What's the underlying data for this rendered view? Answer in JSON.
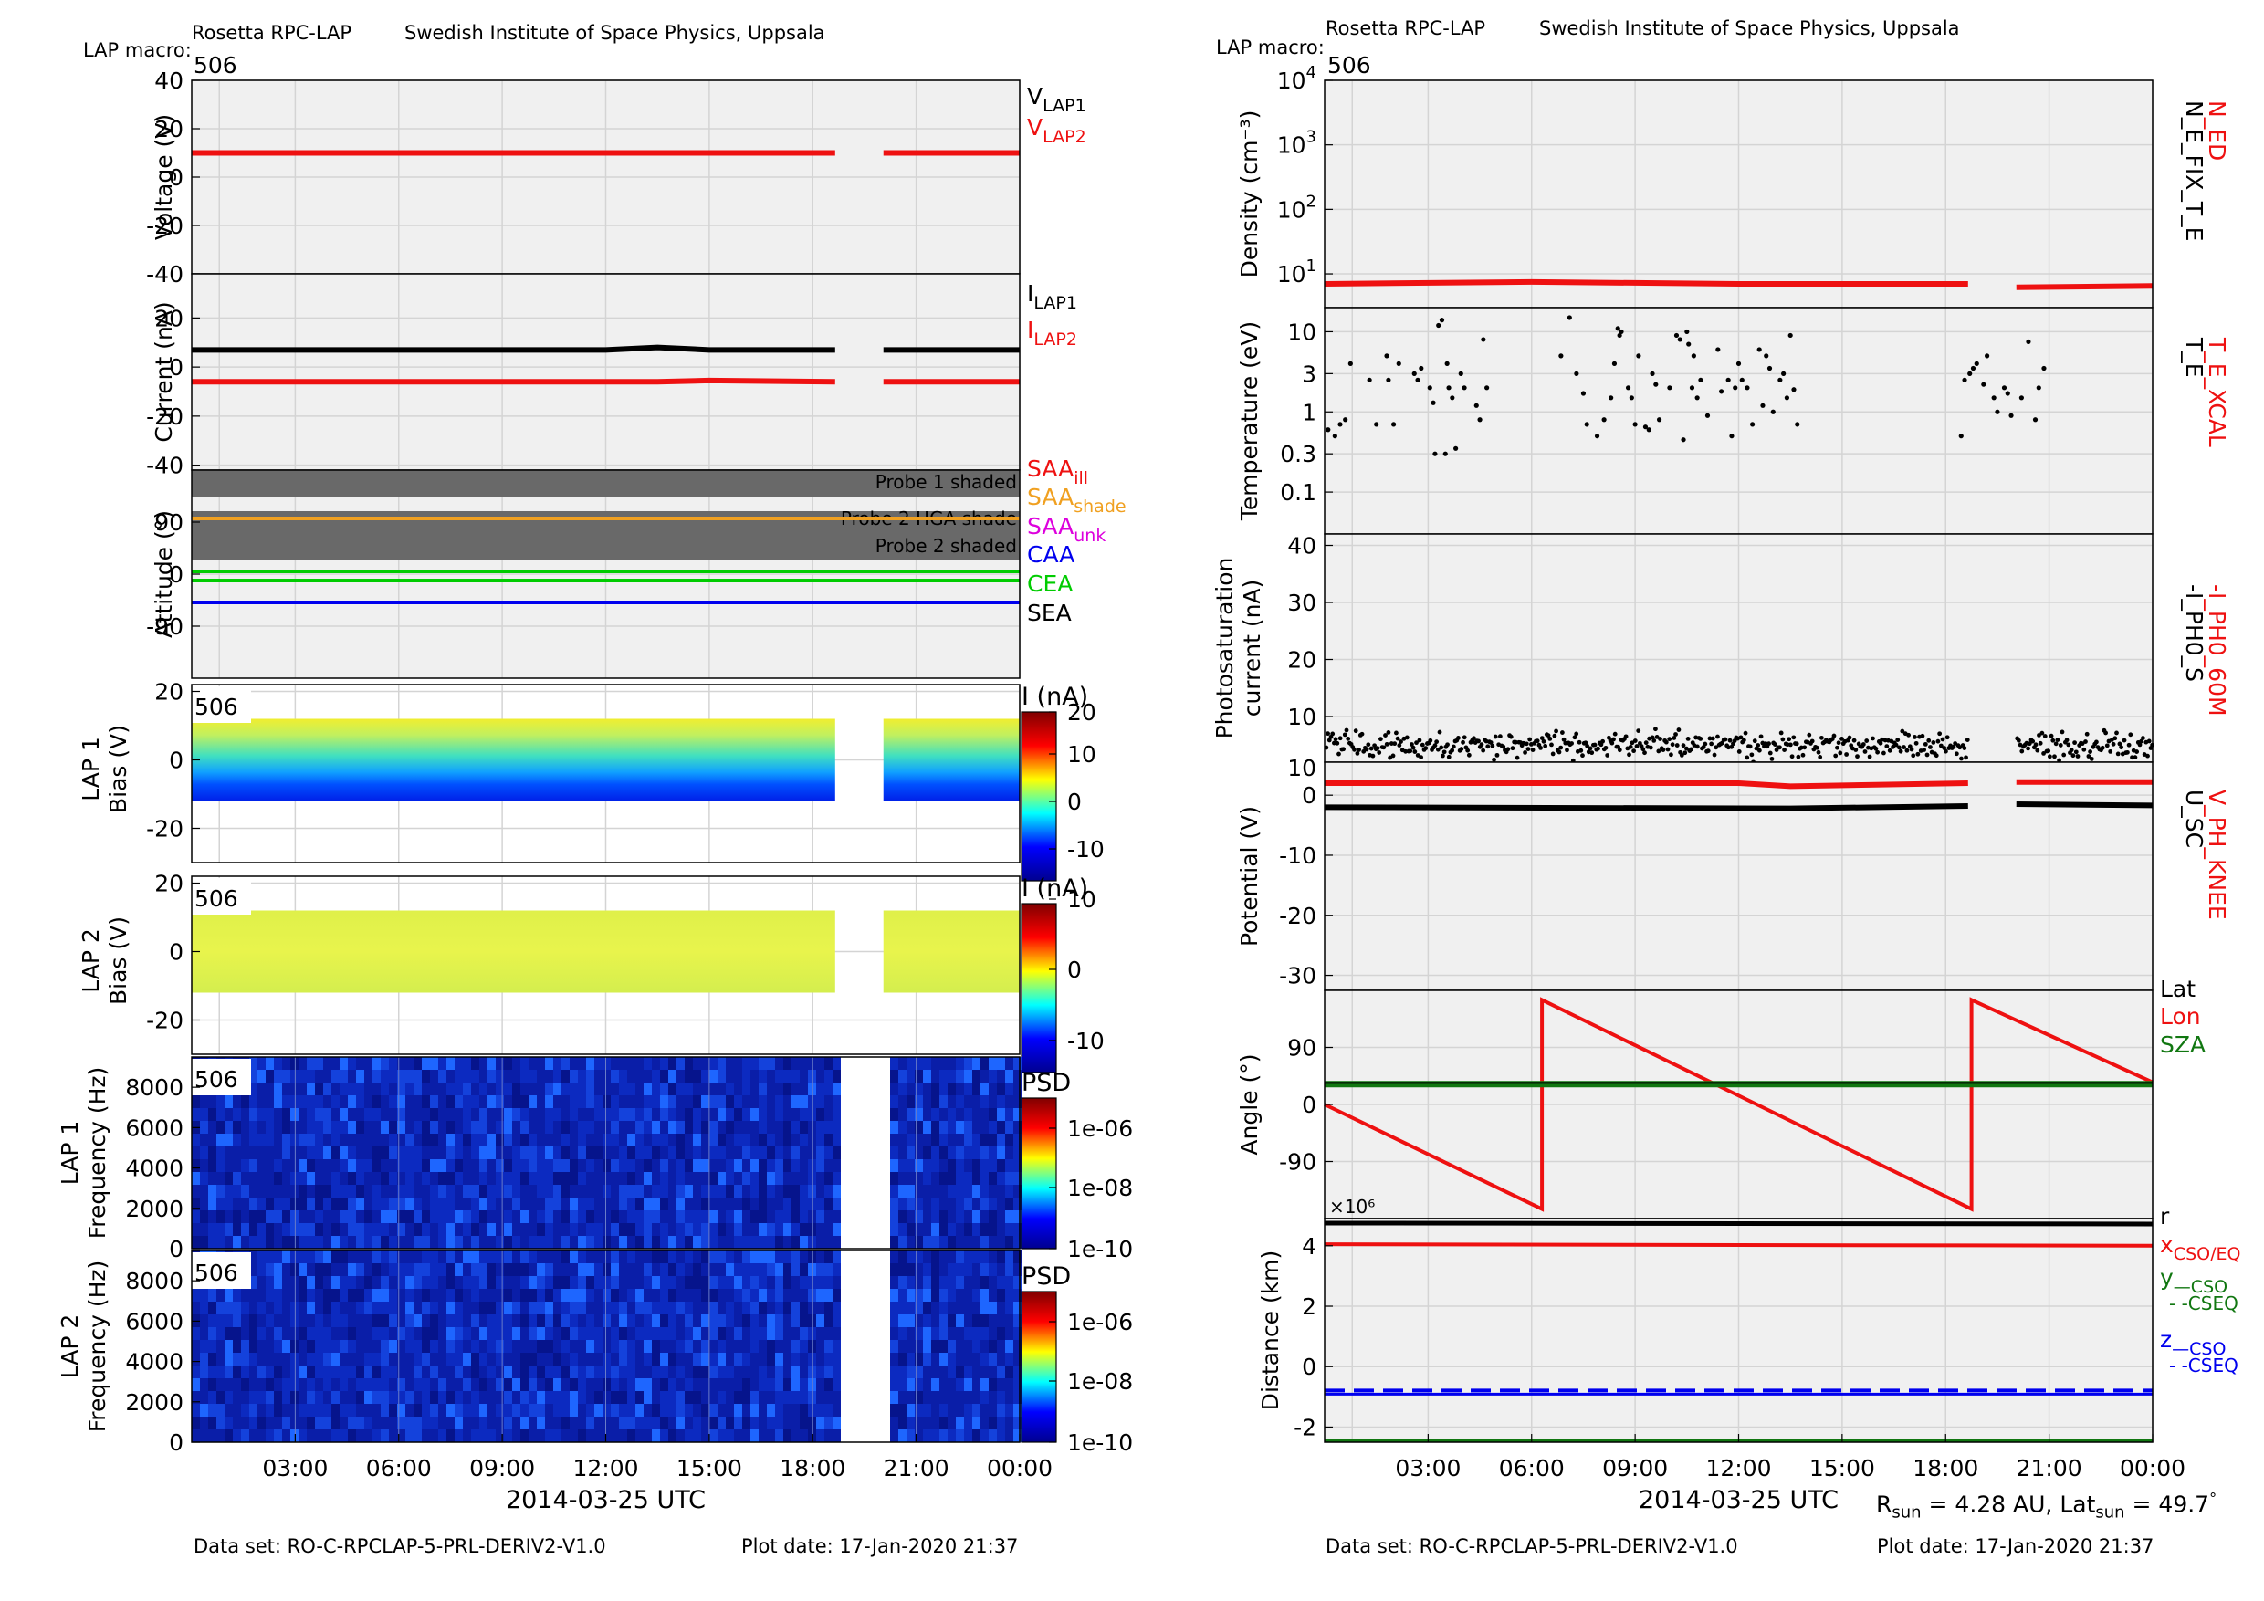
{
  "header": {
    "left": {
      "title": "Rosetta RPC-LAP",
      "institute": "Swedish Institute of Space Physics, Uppsala",
      "macro_label": "LAP macro:",
      "macro_value": "506"
    },
    "right": {
      "title": "Rosetta RPC-LAP",
      "institute": "Swedish Institute of Space Physics, Uppsala",
      "macro_label": "LAP macro:",
      "macro_value": "506"
    }
  },
  "footer": {
    "left": {
      "dataset": "Data set: RO-C-RPCLAP-5-PRL-DERIV2-V1.0",
      "plotdate": "Plot date: 17-Jan-2020 21:37"
    },
    "right": {
      "dataset": "Data set: RO-C-RPCLAP-5-PRL-DERIV2-V1.0",
      "plotdate": "Plot date: 17-Jan-2020 21:37"
    }
  },
  "colors": {
    "grid": "#d4d4d4",
    "panel_bg": "#f0f0f0",
    "red": "#ee1111",
    "black": "#000000",
    "green": "#00cc00",
    "dark_green": "#117711",
    "blue": "#0000ee",
    "orange": "#f0a020",
    "magenta": "#dd00dd",
    "shade": "#696969"
  },
  "chart_data": [
    {
      "type": "line",
      "id": "voltage",
      "ylabel": "Voltage (V)",
      "ylim": [
        -40,
        40
      ],
      "yticks": [
        "40",
        "20",
        "0",
        "-20",
        "-40"
      ],
      "legend": [
        {
          "label": "V",
          "sub": "LAP1",
          "color": "#000000"
        },
        {
          "label": "V",
          "sub": "LAP2",
          "color": "#ee1111"
        }
      ],
      "series": [
        {
          "name": "VLAP2",
          "color": "#ee1111",
          "x_hours": [
            0,
            18.65,
            20.05,
            24
          ],
          "y": [
            10,
            10,
            10,
            10
          ],
          "gap_hours": [
            18.65,
            20.05
          ]
        }
      ]
    },
    {
      "type": "line",
      "id": "current",
      "ylabel": "Current (nA)",
      "ylim": [
        -40,
        40
      ],
      "yticks": [
        "20",
        "0",
        "-20",
        "-40"
      ],
      "legend": [
        {
          "label": "I",
          "sub": "LAP1",
          "color": "#000000"
        },
        {
          "label": "I",
          "sub": "LAP2",
          "color": "#ee1111"
        }
      ],
      "series": [
        {
          "name": "ILAP1",
          "color": "#000000",
          "x_hours": [
            0,
            6,
            12,
            13.5,
            15,
            18.65,
            20.05,
            24
          ],
          "y": [
            7,
            7,
            7,
            8,
            7,
            7,
            7,
            7
          ]
        },
        {
          "name": "ILAP2",
          "color": "#ee1111",
          "x_hours": [
            0,
            13.5,
            15,
            18.65,
            20.05,
            24
          ],
          "y": [
            -6,
            -6,
            -5.5,
            -6,
            -6,
            -6
          ]
        }
      ]
    },
    {
      "type": "line",
      "id": "attitude",
      "ylabel": "Attitude (°)",
      "ylim": [
        -180,
        180
      ],
      "yticks": [
        "90",
        "0",
        "-90"
      ],
      "shades": [
        {
          "label": "Probe 1 shaded",
          "range": [
            140,
            180
          ]
        },
        {
          "label": "Probe 2 HGA shade",
          "range": [
            85,
            110
          ]
        },
        {
          "label": "Probe 2 shaded",
          "range": [
            25,
            85
          ]
        }
      ],
      "legend": [
        {
          "label": "SAA",
          "sub": "ill",
          "color": "#ee1111"
        },
        {
          "label": "SAA",
          "sub": "shade",
          "color": "#f0a020"
        },
        {
          "label": "SAA",
          "sub": "unk",
          "color": "#dd00dd"
        },
        {
          "label": "CAA",
          "sub": "",
          "color": "#0000ee"
        },
        {
          "label": "CEA",
          "sub": "",
          "color": "#00cc00"
        },
        {
          "label": "SEA",
          "sub": "",
          "color": "#000000"
        }
      ],
      "series": [
        {
          "name": "SAA",
          "color": "#f0a020",
          "y": 90
        },
        {
          "name": "CAA",
          "color": "#0000ee",
          "y": -60
        },
        {
          "name": "CEA",
          "color": "#00cc00",
          "y": [
            -4,
            2
          ]
        }
      ]
    },
    {
      "type": "heatmap",
      "id": "lap1bias",
      "ylabel": [
        "LAP 1",
        "Bias (V)"
      ],
      "ylim": [
        -30,
        22
      ],
      "yticks": [
        "20",
        "0",
        "-20"
      ],
      "macro": "506",
      "colorbar": {
        "title": "I (nA)",
        "ticks": [
          "20",
          "10",
          "0",
          "-10"
        ],
        "range": [
          -15,
          20
        ]
      },
      "bias_range": [
        -12,
        12
      ]
    },
    {
      "type": "heatmap",
      "id": "lap2bias",
      "ylabel": [
        "LAP 2",
        "Bias (V)"
      ],
      "ylim": [
        -30,
        22
      ],
      "yticks": [
        "20",
        "0",
        "-20"
      ],
      "macro": "506",
      "colorbar": {
        "title": "I (nA)",
        "ticks": [
          "10",
          "0",
          "-10"
        ],
        "range": [
          -12,
          10
        ]
      },
      "bias_range": [
        -12,
        12
      ]
    },
    {
      "type": "heatmap",
      "id": "lap1psd",
      "ylabel": [
        "LAP 1",
        "Frequency (Hz)"
      ],
      "ylim": [
        0,
        9500
      ],
      "yticks": [
        "8000",
        "6000",
        "4000",
        "2000",
        "0"
      ],
      "macro": "506",
      "colorbar": {
        "title": "PSD",
        "ticks": [
          "1e-06",
          "1e-08",
          "1e-10"
        ],
        "log": true
      }
    },
    {
      "type": "heatmap",
      "id": "lap2psd",
      "ylabel": [
        "LAP 2",
        "Frequency (Hz)"
      ],
      "ylim": [
        0,
        9500
      ],
      "yticks": [
        "8000",
        "6000",
        "4000",
        "2000",
        "0"
      ],
      "macro": "506",
      "colorbar": {
        "title": "PSD",
        "ticks": [
          "1e-06",
          "1e-08",
          "1e-10"
        ],
        "log": true
      }
    },
    {
      "type": "line",
      "id": "density",
      "ylabel": "Density (cm⁻³)",
      "scale": "log",
      "ylim": [
        3,
        10000
      ],
      "yticks": [
        "10⁴",
        "10³",
        "10²",
        "10¹"
      ],
      "right_labels": [
        {
          "text": "N_ED",
          "color": "#ee1111"
        },
        {
          "text": "N_E_FIX_T_E",
          "color": "#000000"
        }
      ],
      "series": [
        {
          "name": "N_ED",
          "color": "#ee1111",
          "x_hours": [
            0,
            6,
            12,
            18.65,
            20.05,
            24
          ],
          "y": [
            7,
            7.5,
            7,
            7,
            6.2,
            6.5
          ]
        }
      ]
    },
    {
      "type": "scatter",
      "id": "temperature",
      "ylabel": "Temperature (eV)",
      "scale": "log",
      "ylim": [
        0.03,
        20
      ],
      "yticks": [
        "10",
        "3",
        "1",
        "0.3",
        "0.1"
      ],
      "right_labels": [
        {
          "text": "T_E_XCAL",
          "color": "#ee1111"
        },
        {
          "text": "T_E",
          "color": "#000000"
        }
      ],
      "series": [
        {
          "name": "T_E",
          "color": "#000000",
          "points": [
            [
              0.1,
              0.6
            ],
            [
              0.3,
              0.5
            ],
            [
              0.45,
              0.7
            ],
            [
              0.6,
              0.8
            ],
            [
              0.75,
              4
            ],
            [
              1.3,
              2.5
            ],
            [
              1.5,
              0.7
            ],
            [
              1.8,
              5
            ],
            [
              1.85,
              2.5
            ],
            [
              2,
              0.7
            ],
            [
              2.15,
              4
            ],
            [
              2.6,
              3
            ],
            [
              2.7,
              2.5
            ],
            [
              2.8,
              3.5
            ],
            [
              3.05,
              2
            ],
            [
              3.15,
              1.3
            ],
            [
              3.2,
              0.3
            ],
            [
              3.3,
              12
            ],
            [
              3.4,
              14
            ],
            [
              3.5,
              0.3
            ],
            [
              3.55,
              4
            ],
            [
              3.6,
              2
            ],
            [
              3.7,
              1.5
            ],
            [
              3.8,
              0.35
            ],
            [
              3.95,
              3
            ],
            [
              4.05,
              2
            ],
            [
              4.4,
              1.2
            ],
            [
              4.5,
              0.8
            ],
            [
              4.6,
              8
            ],
            [
              4.7,
              2
            ],
            [
              6.85,
              5
            ],
            [
              7.1,
              15
            ],
            [
              7.3,
              3
            ],
            [
              7.5,
              1.7
            ],
            [
              7.6,
              0.7
            ],
            [
              7.9,
              0.5
            ],
            [
              8.1,
              0.8
            ],
            [
              8.3,
              1.5
            ],
            [
              8.4,
              4
            ],
            [
              8.5,
              11
            ],
            [
              8.55,
              9
            ],
            [
              8.6,
              10
            ],
            [
              8.8,
              2
            ],
            [
              8.9,
              1.5
            ],
            [
              9,
              0.7
            ],
            [
              9.1,
              5
            ],
            [
              9.3,
              0.65
            ],
            [
              9.4,
              0.6
            ],
            [
              9.5,
              3
            ],
            [
              9.6,
              2.2
            ],
            [
              9.7,
              0.8
            ],
            [
              10,
              2
            ],
            [
              10.2,
              9
            ],
            [
              10.3,
              8
            ],
            [
              10.4,
              0.45
            ],
            [
              10.5,
              10
            ],
            [
              10.55,
              7
            ],
            [
              10.65,
              2
            ],
            [
              10.7,
              5
            ],
            [
              10.8,
              1.5
            ],
            [
              10.9,
              2.5
            ],
            [
              11.1,
              0.9
            ],
            [
              11.4,
              6
            ],
            [
              11.5,
              1.8
            ],
            [
              11.7,
              2.5
            ],
            [
              11.8,
              0.5
            ],
            [
              11.9,
              2
            ],
            [
              12,
              4
            ],
            [
              12.1,
              2.5
            ],
            [
              12.25,
              2
            ],
            [
              12.4,
              0.7
            ],
            [
              12.6,
              6
            ],
            [
              12.7,
              1.2
            ],
            [
              12.8,
              5
            ],
            [
              12.9,
              3.5
            ],
            [
              13,
              1
            ],
            [
              13.2,
              2.5
            ],
            [
              13.3,
              3
            ],
            [
              13.4,
              1.5
            ],
            [
              13.5,
              9
            ],
            [
              13.6,
              1.9
            ],
            [
              13.7,
              0.7
            ],
            [
              18.45,
              0.5
            ],
            [
              18.55,
              2.5
            ],
            [
              18.7,
              3
            ],
            [
              18.8,
              3.5
            ],
            [
              18.9,
              4
            ],
            [
              19.1,
              2.2
            ],
            [
              19.2,
              5
            ],
            [
              19.4,
              1.5
            ],
            [
              19.5,
              1
            ],
            [
              19.7,
              2
            ],
            [
              19.8,
              1.7
            ],
            [
              19.9,
              0.9
            ],
            [
              20.2,
              1.5
            ],
            [
              20.4,
              7.5
            ],
            [
              20.6,
              0.8
            ],
            [
              20.7,
              2
            ],
            [
              20.85,
              3.5
            ]
          ]
        }
      ]
    },
    {
      "type": "scatter",
      "id": "photosaturation",
      "ylabel": [
        "Photosaturation",
        "current (nA)"
      ],
      "ylim": [
        0,
        40
      ],
      "yticks": [
        "40",
        "30",
        "20",
        "10"
      ],
      "right_labels": [
        {
          "text": "-I_PH0_60M",
          "color": "#ee1111"
        },
        {
          "text": "-I_PH0_S",
          "color": "#000000"
        }
      ],
      "series": [
        {
          "name": "-I_PH0_S",
          "color": "#000000",
          "mean": 5,
          "spread": 1.5,
          "gap_hours": [
            18.65,
            20.05
          ]
        }
      ]
    },
    {
      "type": "line",
      "id": "potential",
      "ylabel": "Potential (V)",
      "ylim": [
        -32,
        5
      ],
      "yticks": [
        "0",
        "-10",
        "-20",
        "-30"
      ],
      "right_labels": [
        {
          "text": "V_PH_KNEE",
          "color": "#ee1111"
        },
        {
          "text": "U_SC",
          "color": "#000000"
        }
      ],
      "series": [
        {
          "name": "V_PH_KNEE",
          "color": "#ee1111",
          "x_hours": [
            0,
            12,
            13.5,
            18.65,
            20.05,
            24
          ],
          "y": [
            2,
            2,
            1.5,
            2,
            2.2,
            2.2
          ]
        },
        {
          "name": "U_SC",
          "color": "#000000",
          "x_hours": [
            0,
            13.5,
            18.65,
            20.05,
            24
          ],
          "y": [
            -2,
            -2.2,
            -1.8,
            -1.5,
            -1.7
          ]
        }
      ]
    },
    {
      "type": "line",
      "id": "angle",
      "ylabel": "Angle (°)",
      "ylim": [
        -180,
        180
      ],
      "yticks": [
        "90",
        "0",
        "-90"
      ],
      "legend": [
        {
          "label": "Lat",
          "sub": "",
          "color": "#000000"
        },
        {
          "label": "Lon",
          "sub": "",
          "color": "#ee1111"
        },
        {
          "label": "SZA",
          "sub": "",
          "color": "#117711"
        }
      ],
      "series": [
        {
          "name": "Lon",
          "color": "#ee1111",
          "x_hours": [
            0,
            6.3,
            6.3,
            18.75,
            18.75,
            24
          ],
          "y": [
            0,
            -165,
            165,
            -165,
            165,
            35
          ]
        },
        {
          "name": "SZA",
          "color": "#117711",
          "y": 32
        },
        {
          "name": "Lat",
          "color": "#000000",
          "y": 34
        }
      ]
    },
    {
      "type": "line",
      "id": "distance",
      "ylabel": "Distance (km)",
      "ylim": [
        -2.5,
        4.9
      ],
      "yticks": [
        "4",
        "2",
        "0",
        "-2"
      ],
      "multiplier": "×10⁶",
      "legend": [
        {
          "label": "r",
          "sub": "",
          "color": "#000000"
        },
        {
          "label": "x",
          "sub": "CSO/EQ",
          "color": "#ee1111"
        },
        {
          "label": "y",
          "sub": "—CSO",
          "color": "#117711"
        },
        {
          "label": "- -CSEQ",
          "sub": "",
          "color": "#117711"
        },
        {
          "label": "z",
          "sub": "—CSO",
          "color": "#0000ee"
        },
        {
          "label": "- -CSEQ",
          "sub": "",
          "color": "#0000ee"
        }
      ],
      "series": [
        {
          "name": "r",
          "color": "#000000",
          "x_hours": [
            0,
            24
          ],
          "y": [
            4.75,
            4.72
          ]
        },
        {
          "name": "x",
          "color": "#ee1111",
          "x_hours": [
            0,
            24
          ],
          "y": [
            4.05,
            4.0
          ]
        },
        {
          "name": "z",
          "color": "#0000ee",
          "x_hours": [
            0,
            24
          ],
          "y": [
            -0.85,
            -0.85
          ]
        },
        {
          "name": "y",
          "color": "#117711",
          "x_hours": [
            0,
            24
          ],
          "y": [
            -2.45,
            -2.45
          ]
        }
      ]
    }
  ],
  "xaxis": {
    "ticks": [
      "03:00",
      "06:00",
      "09:00",
      "12:00",
      "15:00",
      "18:00",
      "21:00",
      "00:00"
    ],
    "tick_hours": [
      3,
      6,
      9,
      12,
      15,
      18,
      21,
      24
    ],
    "xlim_hours": [
      0,
      24
    ],
    "label": "2014-03-25 UTC"
  },
  "sun_info": {
    "r_text": "R",
    "r_sub": "sun",
    "r_value": " = 4.28 AU, Lat",
    "lat_sub": "sun",
    "lat_value": " = 49.7",
    "deg": "°"
  }
}
